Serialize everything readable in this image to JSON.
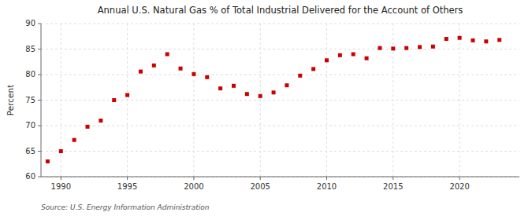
{
  "chart_data": {
    "type": "scatter",
    "title": "Annual U.S. Natural Gas % of Total Industrial Delivered for the Account of Others",
    "ylabel": "Percent",
    "source": "Source: U.S. Energy Information Administration",
    "x": [
      1989,
      1990,
      1991,
      1992,
      1993,
      1994,
      1995,
      1996,
      1997,
      1998,
      1999,
      2000,
      2001,
      2002,
      2003,
      2004,
      2005,
      2006,
      2007,
      2008,
      2009,
      2010,
      2011,
      2012,
      2013,
      2014,
      2015,
      2016,
      2017,
      2018,
      2019,
      2020,
      2021,
      2022,
      2023
    ],
    "values": [
      63.0,
      65.0,
      67.2,
      69.8,
      71.0,
      75.0,
      76.0,
      80.6,
      81.8,
      84.0,
      81.2,
      80.1,
      79.5,
      77.3,
      77.8,
      76.2,
      75.8,
      76.5,
      77.9,
      79.8,
      81.1,
      82.8,
      83.8,
      84.0,
      83.2,
      85.2,
      85.1,
      85.2,
      85.4,
      85.5,
      87.0,
      87.2,
      86.7,
      86.5,
      86.8
    ],
    "xlim": [
      1988.5,
      2024.5
    ],
    "ylim": [
      60,
      90
    ],
    "xticks": [
      1990,
      1995,
      2000,
      2005,
      2010,
      2015,
      2020
    ],
    "yticks": [
      60,
      65,
      70,
      75,
      80,
      85,
      90
    ],
    "grid": true,
    "color": "#cc0000",
    "marker": "square"
  }
}
